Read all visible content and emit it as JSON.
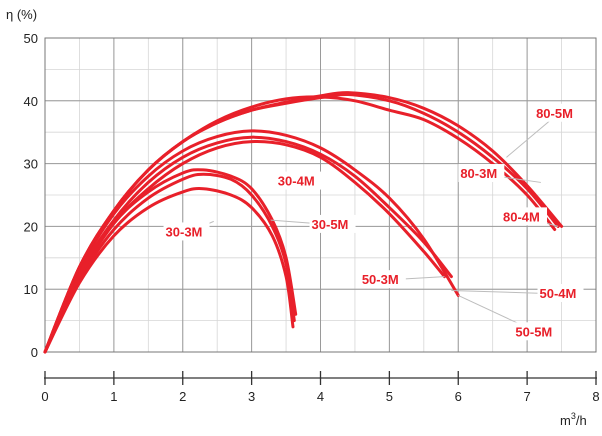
{
  "chart_data": {
    "type": "line",
    "ylabel": "η (%)",
    "xlabel_base": "m",
    "xlabel_sup": "3",
    "xlabel_tail": "/h",
    "xlim": [
      0,
      8
    ],
    "ylim": [
      0,
      50
    ],
    "x_ticks": [
      0,
      1,
      2,
      3,
      4,
      5,
      6,
      7,
      8
    ],
    "y_ticks": [
      0,
      10,
      20,
      30,
      40,
      50
    ],
    "x_minor_step": 0.5,
    "y_minor_step": 5,
    "grid": true,
    "line_color": "#e8202a",
    "label_color": "#e8202a",
    "series": [
      {
        "name": "30-3M",
        "points": [
          [
            0,
            0
          ],
          [
            0.5,
            11
          ],
          [
            1,
            18.5
          ],
          [
            1.5,
            23
          ],
          [
            2,
            25.5
          ],
          [
            2.3,
            26
          ],
          [
            2.7,
            25
          ],
          [
            3,
            23
          ],
          [
            3.3,
            18.5
          ],
          [
            3.5,
            12
          ],
          [
            3.6,
            4
          ]
        ]
      },
      {
        "name": "30-4M",
        "points": [
          [
            0,
            0
          ],
          [
            0.5,
            11.5
          ],
          [
            1,
            19.5
          ],
          [
            1.5,
            24.5
          ],
          [
            2,
            27.5
          ],
          [
            2.3,
            28.3
          ],
          [
            2.7,
            27.5
          ],
          [
            3,
            25
          ],
          [
            3.3,
            20
          ],
          [
            3.5,
            14
          ],
          [
            3.62,
            5
          ]
        ]
      },
      {
        "name": "30-5M",
        "points": [
          [
            0,
            0
          ],
          [
            0.5,
            12
          ],
          [
            1,
            20.5
          ],
          [
            1.5,
            25.5
          ],
          [
            2,
            28.5
          ],
          [
            2.3,
            29
          ],
          [
            2.7,
            28
          ],
          [
            3,
            26
          ],
          [
            3.3,
            21
          ],
          [
            3.5,
            15
          ],
          [
            3.64,
            6
          ]
        ]
      },
      {
        "name": "50-3M",
        "points": [
          [
            0,
            0
          ],
          [
            0.5,
            12
          ],
          [
            1,
            20.5
          ],
          [
            1.5,
            26
          ],
          [
            2,
            30
          ],
          [
            2.5,
            32.5
          ],
          [
            3,
            33.5
          ],
          [
            3.5,
            33
          ],
          [
            4,
            31
          ],
          [
            4.5,
            27
          ],
          [
            5,
            22
          ],
          [
            5.5,
            16
          ],
          [
            5.8,
            12
          ]
        ]
      },
      {
        "name": "50-4M",
        "points": [
          [
            0,
            0
          ],
          [
            0.5,
            12.5
          ],
          [
            1,
            21
          ],
          [
            1.5,
            27
          ],
          [
            2,
            31
          ],
          [
            2.5,
            33.3
          ],
          [
            3,
            34.2
          ],
          [
            3.5,
            33.5
          ],
          [
            4,
            31.5
          ],
          [
            4.5,
            28
          ],
          [
            5,
            23
          ],
          [
            5.5,
            17.5
          ],
          [
            5.9,
            12
          ]
        ]
      },
      {
        "name": "50-5M",
        "points": [
          [
            0,
            0
          ],
          [
            0.5,
            13
          ],
          [
            1,
            22
          ],
          [
            1.5,
            28
          ],
          [
            2,
            32
          ],
          [
            2.5,
            34.3
          ],
          [
            3,
            35.2
          ],
          [
            3.5,
            34.5
          ],
          [
            4,
            32.5
          ],
          [
            4.5,
            29
          ],
          [
            5,
            24.5
          ],
          [
            5.5,
            18
          ],
          [
            6,
            9
          ]
        ]
      },
      {
        "name": "80-3M",
        "points": [
          [
            0,
            0
          ],
          [
            0.5,
            13.5
          ],
          [
            1,
            22.5
          ],
          [
            1.5,
            29
          ],
          [
            2,
            33.5
          ],
          [
            2.5,
            36.8
          ],
          [
            3,
            39
          ],
          [
            3.5,
            40.3
          ],
          [
            4,
            40.6
          ],
          [
            4.5,
            40
          ],
          [
            5,
            38.5
          ],
          [
            5.5,
            37
          ],
          [
            6,
            34
          ],
          [
            6.5,
            30
          ],
          [
            7,
            25
          ],
          [
            7.4,
            19.5
          ]
        ]
      },
      {
        "name": "80-4M",
        "points": [
          [
            0,
            0
          ],
          [
            0.5,
            13.5
          ],
          [
            1,
            22.5
          ],
          [
            1.5,
            29
          ],
          [
            2,
            33.5
          ],
          [
            2.5,
            36.5
          ],
          [
            3,
            38.5
          ],
          [
            3.5,
            39.6
          ],
          [
            4,
            40.5
          ],
          [
            4.4,
            41
          ],
          [
            5,
            40
          ],
          [
            5.5,
            38
          ],
          [
            6,
            35
          ],
          [
            6.5,
            31
          ],
          [
            7,
            26
          ],
          [
            7.45,
            20
          ]
        ]
      },
      {
        "name": "80-5M",
        "points": [
          [
            0,
            0
          ],
          [
            0.5,
            13.5
          ],
          [
            1,
            22.5
          ],
          [
            1.5,
            29
          ],
          [
            2,
            33.5
          ],
          [
            2.5,
            36.5
          ],
          [
            3,
            38.5
          ],
          [
            3.5,
            39.8
          ],
          [
            4,
            40.8
          ],
          [
            4.4,
            41.3
          ],
          [
            5,
            40.5
          ],
          [
            5.5,
            38.8
          ],
          [
            6,
            36
          ],
          [
            6.5,
            32
          ],
          [
            7,
            26.5
          ],
          [
            7.5,
            20
          ]
        ]
      }
    ],
    "annotations": [
      {
        "text": "80-5M",
        "label_at": [
          7.13,
          37.3
        ],
        "leader_to": [
          6.7,
          31
        ]
      },
      {
        "text": "80-3M",
        "label_at": [
          6.03,
          27.7
        ],
        "leader_to": [
          7.2,
          27
        ]
      },
      {
        "text": "80-4M",
        "label_at": [
          6.65,
          20.8
        ],
        "leader_to": [
          7.45,
          20
        ]
      },
      {
        "text": "30-4M",
        "label_at": [
          3.38,
          26.5
        ],
        "leader_to": null
      },
      {
        "text": "30-3M",
        "label_at": [
          1.75,
          18.4
        ],
        "leader_to": [
          2.45,
          20.8
        ]
      },
      {
        "text": "30-5M",
        "label_at": [
          3.87,
          19.6
        ],
        "leader_to": [
          3.28,
          21
        ]
      },
      {
        "text": "50-3M",
        "label_at": [
          4.6,
          10.8
        ],
        "leader_to": [
          5.8,
          12
        ]
      },
      {
        "text": "50-4M",
        "label_at": [
          7.18,
          8.6
        ],
        "leader_to": [
          5.9,
          9.8
        ]
      },
      {
        "text": "50-5M",
        "label_at": [
          6.83,
          2.5
        ],
        "leader_to": [
          6.0,
          9.0
        ]
      }
    ]
  }
}
